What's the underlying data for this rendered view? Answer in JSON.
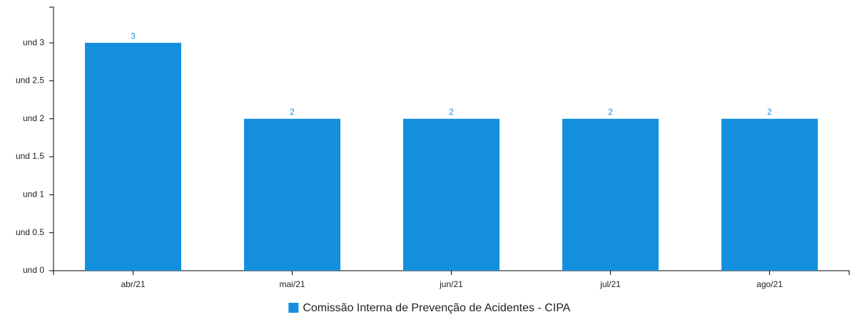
{
  "chart_data": {
    "type": "bar",
    "categories": [
      "abr/21",
      "mai/21",
      "jun/21",
      "jul/21",
      "ago/21"
    ],
    "series": [
      {
        "name": "Comissão Interna de Prevenção de Acidentes - CIPA",
        "color": "#138fdd",
        "values": [
          3,
          2,
          2,
          2,
          2
        ]
      }
    ],
    "ylim": [
      0,
      3.47
    ],
    "yticks": [
      {
        "value": 0,
        "label": "und 0"
      },
      {
        "value": 0.5,
        "label": "und 0.5"
      },
      {
        "value": 1,
        "label": "und 1"
      },
      {
        "value": 1.5,
        "label": "und 1.5"
      },
      {
        "value": 2,
        "label": "und 2"
      },
      {
        "value": 2.5,
        "label": "und 2.5"
      },
      {
        "value": 3,
        "label": "und 3"
      }
    ],
    "grid": false,
    "legend": "bottom"
  }
}
